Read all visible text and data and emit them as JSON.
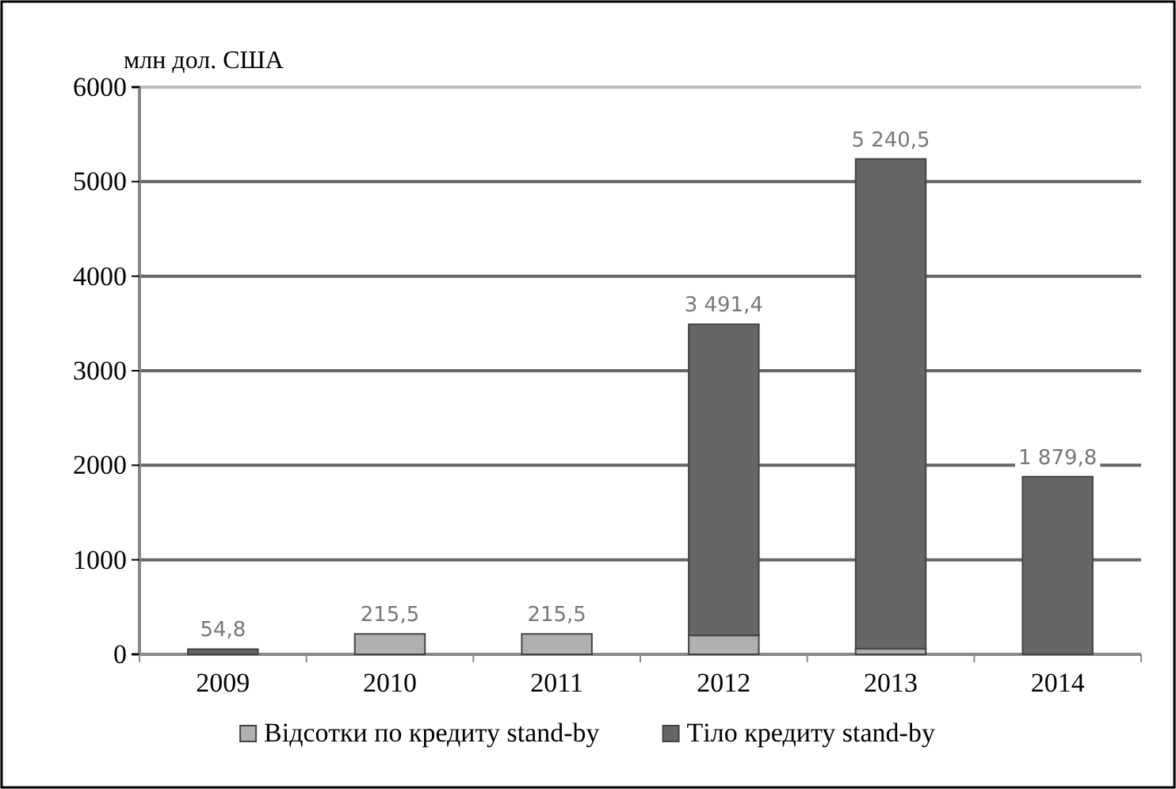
{
  "chart_data": {
    "type": "bar",
    "stacked": true,
    "ylabel": "млн дол. США",
    "categories": [
      "2009",
      "2010",
      "2011",
      "2012",
      "2013",
      "2014"
    ],
    "series": [
      {
        "name": "Відсотки по кредиту stand-by",
        "color": "#b0b0b0",
        "values": [
          0,
          215.5,
          215.5,
          200,
          60,
          0
        ]
      },
      {
        "name": "Тіло кредиту stand-by",
        "color": "#666666",
        "values": [
          54.8,
          0,
          0,
          3291.4,
          5180.5,
          1879.8
        ]
      }
    ],
    "totals": [
      "54,8",
      "215,5",
      "215,5",
      "3 491,4",
      "5 240,5",
      "1 879,8"
    ],
    "ylim": [
      0,
      6000
    ],
    "yticks": [
      0,
      1000,
      2000,
      3000,
      4000,
      5000,
      6000
    ],
    "grid": "y",
    "legend": "bottom"
  }
}
